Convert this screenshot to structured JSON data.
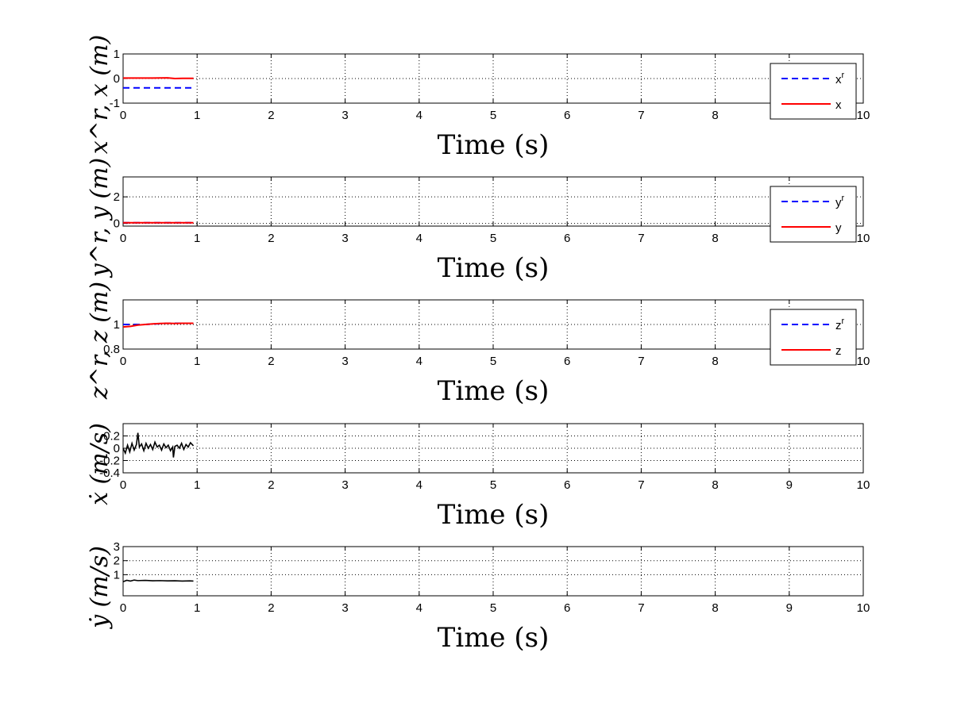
{
  "chart_data": [
    {
      "type": "line",
      "ylabel": "x^r, x (m)",
      "xlabel": "Time (s)",
      "xlim": [
        0,
        10
      ],
      "ylim": [
        -1,
        1
      ],
      "xticks": [
        "0",
        "1",
        "2",
        "3",
        "4",
        "5",
        "6",
        "7",
        "8",
        "9",
        "10"
      ],
      "yticks": [
        "-1",
        "0",
        "1"
      ],
      "grid": true,
      "legend_position": "top-right",
      "series": [
        {
          "name": "x^r",
          "legend_base": "x",
          "legend_sup": "r",
          "color": "#0000ff",
          "dash": "dashed",
          "x": [
            0,
            0.95
          ],
          "y": [
            -0.38,
            -0.38
          ]
        },
        {
          "name": "x",
          "legend_base": "x",
          "legend_sup": "",
          "color": "#ff0000",
          "dash": "solid",
          "x": [
            0,
            0.2,
            0.4,
            0.6,
            0.7,
            0.8,
            0.95
          ],
          "y": [
            0.02,
            0.02,
            0.02,
            0.03,
            0.0,
            0.01,
            0.01
          ]
        }
      ]
    },
    {
      "type": "line",
      "ylabel": "y^r, y (m)",
      "xlabel": "Time (s)",
      "xlim": [
        0,
        10
      ],
      "ylim": [
        -0.2,
        3.5
      ],
      "xticks": [
        "0",
        "1",
        "2",
        "3",
        "4",
        "5",
        "6",
        "7",
        "8",
        "9",
        "10"
      ],
      "yticks": [
        "0",
        "2"
      ],
      "grid": true,
      "legend_position": "top-right",
      "series": [
        {
          "name": "y^r",
          "legend_base": "y",
          "legend_sup": "r",
          "color": "#0000ff",
          "dash": "dashed",
          "x": [
            0,
            0.95
          ],
          "y": [
            0.05,
            0.05
          ]
        },
        {
          "name": "y",
          "legend_base": "y",
          "legend_sup": "",
          "color": "#ff0000",
          "dash": "solid",
          "x": [
            0,
            0.95
          ],
          "y": [
            0.05,
            0.05
          ]
        }
      ]
    },
    {
      "type": "line",
      "ylabel": "z^r, z (m)",
      "xlabel": "Time (s)",
      "xlim": [
        0,
        10
      ],
      "ylim": [
        0.8,
        1.2
      ],
      "xticks": [
        "0",
        "1",
        "2",
        "3",
        "4",
        "5",
        "6",
        "7",
        "8",
        "9",
        "10"
      ],
      "yticks": [
        "0.8",
        "1"
      ],
      "grid": true,
      "legend_position": "top-right",
      "series": [
        {
          "name": "z^r",
          "legend_base": "z",
          "legend_sup": "r",
          "color": "#0000ff",
          "dash": "dashed",
          "x": [
            0,
            0.3,
            0.6,
            0.95
          ],
          "y": [
            1.0,
            1.0,
            1.01,
            1.01
          ]
        },
        {
          "name": "z",
          "legend_base": "z",
          "legend_sup": "",
          "color": "#ff0000",
          "dash": "solid",
          "x": [
            0,
            0.1,
            0.2,
            0.3,
            0.4,
            0.5,
            0.6,
            0.7,
            0.8,
            0.95
          ],
          "y": [
            0.98,
            0.985,
            0.995,
            1.0,
            1.005,
            1.008,
            1.01,
            1.008,
            1.01,
            1.01
          ]
        }
      ]
    },
    {
      "type": "line",
      "ylabel": "ẋ (m/s)",
      "xlabel": "Time (s)",
      "xlim": [
        0,
        10
      ],
      "ylim": [
        -0.4,
        0.4
      ],
      "xticks": [
        "0",
        "1",
        "2",
        "3",
        "4",
        "5",
        "6",
        "7",
        "8",
        "9",
        "10"
      ],
      "yticks": [
        "-0.4",
        "-0.2",
        "0",
        "0.2"
      ],
      "grid": true,
      "series": [
        {
          "name": "ẋ",
          "color": "#000000",
          "dash": "solid",
          "x": [
            0,
            0.03,
            0.06,
            0.09,
            0.12,
            0.15,
            0.18,
            0.2,
            0.22,
            0.25,
            0.28,
            0.31,
            0.34,
            0.37,
            0.4,
            0.43,
            0.46,
            0.49,
            0.52,
            0.55,
            0.58,
            0.61,
            0.64,
            0.67,
            0.68,
            0.7,
            0.73,
            0.76,
            0.79,
            0.82,
            0.85,
            0.88,
            0.91,
            0.95
          ],
          "y": [
            0.0,
            -0.08,
            0.05,
            -0.06,
            0.08,
            -0.03,
            0.06,
            0.25,
            0.02,
            0.07,
            -0.04,
            0.08,
            0.0,
            0.06,
            -0.02,
            0.1,
            0.02,
            0.05,
            -0.03,
            0.07,
            0.01,
            0.05,
            -0.04,
            0.02,
            -0.15,
            0.03,
            0.05,
            0.0,
            0.08,
            -0.02,
            0.06,
            0.02,
            0.09,
            0.04
          ]
        }
      ]
    },
    {
      "type": "line",
      "ylabel": "ẏ (m/s)",
      "xlabel": "Time (s)",
      "xlim": [
        0,
        10
      ],
      "ylim": [
        -0.5,
        3
      ],
      "xticks": [
        "0",
        "1",
        "2",
        "3",
        "4",
        "5",
        "6",
        "7",
        "8",
        "9",
        "10"
      ],
      "yticks": [
        "3",
        "2",
        "1"
      ],
      "grid": true,
      "series": [
        {
          "name": "ẏ",
          "color": "#000000",
          "dash": "solid",
          "x": [
            0,
            0.05,
            0.1,
            0.15,
            0.2,
            0.3,
            0.4,
            0.5,
            0.6,
            0.7,
            0.8,
            0.9,
            0.95
          ],
          "y": [
            0.5,
            0.6,
            0.55,
            0.62,
            0.58,
            0.6,
            0.57,
            0.58,
            0.56,
            0.57,
            0.55,
            0.56,
            0.55
          ]
        }
      ]
    }
  ]
}
